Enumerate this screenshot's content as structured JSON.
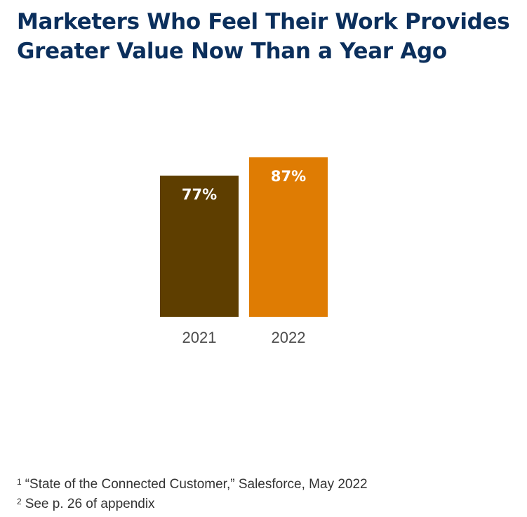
{
  "chart_data": {
    "type": "bar",
    "title": [
      "Marketers Who Feel Their Work Provides",
      "Greater Value Now Than a Year Ago"
    ],
    "categories": [
      "2021",
      "2022"
    ],
    "values": [
      77,
      87
    ],
    "value_labels": [
      "77%",
      "87%"
    ],
    "colors": [
      "#5e3e00",
      "#df7c03"
    ],
    "xlabel": "",
    "ylabel": "",
    "ylim": [
      0,
      100
    ],
    "grid": false,
    "legend": "none"
  },
  "footnotes": [
    {
      "marker": "1",
      "text": "“State of the Connected Customer,” Salesforce, May 2022"
    },
    {
      "marker": "2",
      "text": "See p. 26 of appendix"
    }
  ],
  "colors": {
    "title": "#0b2f5c",
    "bar_text": "#ffffff",
    "tick_text": "#4d4d4d"
  }
}
